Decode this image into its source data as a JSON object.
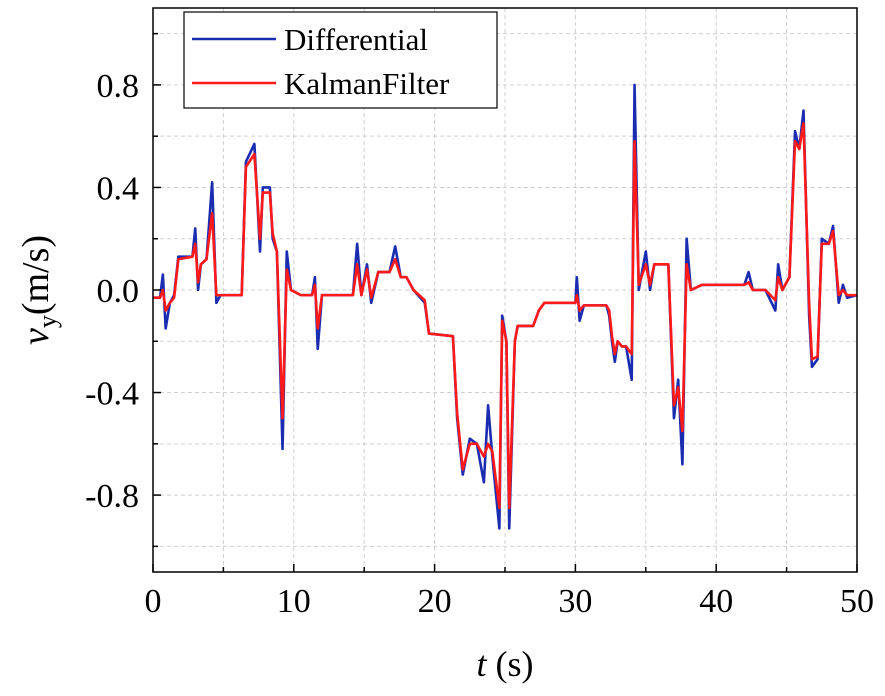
{
  "chart_data": {
    "type": "line",
    "xlabel": {
      "symbol": "t",
      "unit": "(s)"
    },
    "ylabel": {
      "symbol": "v",
      "subscript": "y",
      "unit": "(m/s)"
    },
    "xlim": [
      0,
      50
    ],
    "xticks": [
      0,
      10,
      20,
      30,
      40,
      50
    ],
    "xminorticks": [
      5,
      15,
      25,
      35,
      45
    ],
    "ylim": [
      -1.1,
      1.1
    ],
    "yticks": [
      -0.8,
      -0.4,
      {
        "value": 0,
        "label": "0.0"
      },
      0.4,
      0.8
    ],
    "yminorticks": [
      -1.0,
      -0.6,
      -0.2,
      0.2,
      0.6,
      1.0
    ],
    "grid": true,
    "legend": "upper left",
    "series": [
      {
        "name": "Differential",
        "color": "#1a2cb0",
        "x": [
          0,
          0.5,
          0.7,
          0.9,
          1.2,
          1.5,
          1.8,
          2.8,
          3.0,
          3.2,
          3.4,
          3.8,
          4.2,
          4.5,
          4.8,
          6.3,
          6.6,
          7.2,
          7.6,
          7.8,
          8.3,
          8.5,
          8.8,
          9.2,
          9.5,
          9.8,
          10.5,
          11.3,
          11.5,
          11.7,
          12.0,
          14.2,
          14.5,
          14.8,
          15.2,
          15.5,
          16,
          16.8,
          17.2,
          17.6,
          18,
          18.5,
          19.3,
          19.6,
          21.3,
          21.6,
          22,
          22.5,
          23,
          23.5,
          23.8,
          24.1,
          24.6,
          24.8,
          25.1,
          25.3,
          25.7,
          25.9,
          27,
          27.4,
          27.8,
          30,
          30.1,
          30.3,
          30.6,
          32.2,
          32.4,
          32.6,
          32.8,
          33,
          33.3,
          33.6,
          34,
          34.2,
          34.5,
          35,
          35.3,
          35.6,
          36.3,
          36.6,
          37.0,
          37.3,
          37.6,
          37.9,
          38.2,
          39,
          42,
          42.3,
          42.6,
          43.5,
          44.2,
          44.4,
          44.7,
          45.2,
          45.6,
          45.9,
          46.2,
          46.6,
          46.8,
          47.2,
          47.5,
          48,
          48.3,
          48.7,
          49,
          49.3,
          50
        ],
        "values": [
          -0.03,
          -0.03,
          0.06,
          -0.15,
          -0.05,
          -0.02,
          0.13,
          0.13,
          0.24,
          0.0,
          0.1,
          0.12,
          0.42,
          -0.05,
          -0.02,
          -0.02,
          0.5,
          0.57,
          0.15,
          0.4,
          0.4,
          0.2,
          0.15,
          -0.62,
          0.15,
          0.0,
          -0.02,
          -0.02,
          0.05,
          -0.23,
          -0.02,
          -0.02,
          0.18,
          -0.02,
          0.1,
          -0.05,
          0.07,
          0.07,
          0.17,
          0.05,
          0.05,
          0.0,
          -0.05,
          -0.17,
          -0.18,
          -0.5,
          -0.72,
          -0.58,
          -0.6,
          -0.75,
          -0.45,
          -0.65,
          -0.93,
          -0.1,
          -0.2,
          -0.93,
          -0.2,
          -0.14,
          -0.14,
          -0.08,
          -0.05,
          -0.05,
          0.05,
          -0.12,
          -0.06,
          -0.06,
          -0.1,
          -0.2,
          -0.28,
          -0.2,
          -0.22,
          -0.22,
          -0.35,
          0.8,
          0.0,
          0.15,
          0.0,
          0.1,
          0.1,
          0.1,
          -0.5,
          -0.35,
          -0.68,
          0.2,
          0.0,
          0.02,
          0.02,
          0.07,
          0.0,
          0.0,
          -0.08,
          0.1,
          0.0,
          0.05,
          0.62,
          0.55,
          0.7,
          -0.1,
          -0.3,
          -0.27,
          0.2,
          0.18,
          0.25,
          -0.05,
          0.02,
          -0.03,
          -0.02
        ]
      },
      {
        "name": "KalmanFilter",
        "color": "#ff1a1a",
        "x": [
          0,
          0.5,
          0.7,
          0.9,
          1.2,
          1.5,
          1.8,
          2.8,
          3.0,
          3.2,
          3.4,
          3.8,
          4.2,
          4.5,
          4.8,
          6.3,
          6.6,
          7.2,
          7.6,
          7.8,
          8.3,
          8.5,
          8.8,
          9.2,
          9.5,
          9.8,
          10.5,
          11.3,
          11.5,
          11.7,
          12.0,
          14.2,
          14.5,
          14.8,
          15.2,
          15.5,
          16,
          16.8,
          17.2,
          17.6,
          18,
          18.5,
          19.3,
          19.6,
          21.3,
          21.6,
          22,
          22.5,
          23,
          23.5,
          23.8,
          24.1,
          24.6,
          24.8,
          25.1,
          25.3,
          25.7,
          25.9,
          27,
          27.4,
          27.8,
          30,
          30.1,
          30.3,
          30.6,
          32.2,
          32.4,
          32.6,
          32.8,
          33,
          33.3,
          33.6,
          34,
          34.2,
          34.5,
          35,
          35.3,
          35.6,
          36.3,
          36.6,
          37.0,
          37.3,
          37.6,
          37.9,
          38.2,
          39,
          42,
          42.3,
          42.6,
          43.5,
          44.2,
          44.4,
          44.7,
          45.2,
          45.6,
          45.9,
          46.2,
          46.6,
          46.8,
          47.2,
          47.5,
          48,
          48.3,
          48.7,
          49,
          49.3,
          50
        ],
        "values": [
          -0.03,
          -0.03,
          0.0,
          -0.08,
          -0.05,
          -0.03,
          0.12,
          0.13,
          0.18,
          0.03,
          0.1,
          0.12,
          0.3,
          -0.02,
          -0.02,
          -0.02,
          0.48,
          0.53,
          0.2,
          0.38,
          0.38,
          0.22,
          0.15,
          -0.5,
          0.08,
          0.0,
          -0.02,
          -0.02,
          0.02,
          -0.15,
          -0.02,
          -0.02,
          0.1,
          -0.02,
          0.08,
          -0.03,
          0.07,
          0.07,
          0.12,
          0.05,
          0.05,
          0.0,
          -0.04,
          -0.17,
          -0.18,
          -0.48,
          -0.7,
          -0.6,
          -0.6,
          -0.65,
          -0.6,
          -0.63,
          -0.85,
          -0.12,
          -0.2,
          -0.85,
          -0.2,
          -0.14,
          -0.14,
          -0.08,
          -0.05,
          -0.05,
          -0.02,
          -0.08,
          -0.06,
          -0.06,
          -0.08,
          -0.18,
          -0.25,
          -0.2,
          -0.22,
          -0.22,
          -0.25,
          0.58,
          0.02,
          0.1,
          0.02,
          0.1,
          0.1,
          0.1,
          -0.45,
          -0.38,
          -0.55,
          0.1,
          0.0,
          0.02,
          0.02,
          0.03,
          0.0,
          0.0,
          -0.04,
          0.05,
          0.0,
          0.05,
          0.58,
          0.55,
          0.65,
          -0.05,
          -0.27,
          -0.26,
          0.18,
          0.18,
          0.23,
          -0.02,
          0.0,
          -0.02,
          -0.02
        ]
      }
    ]
  }
}
